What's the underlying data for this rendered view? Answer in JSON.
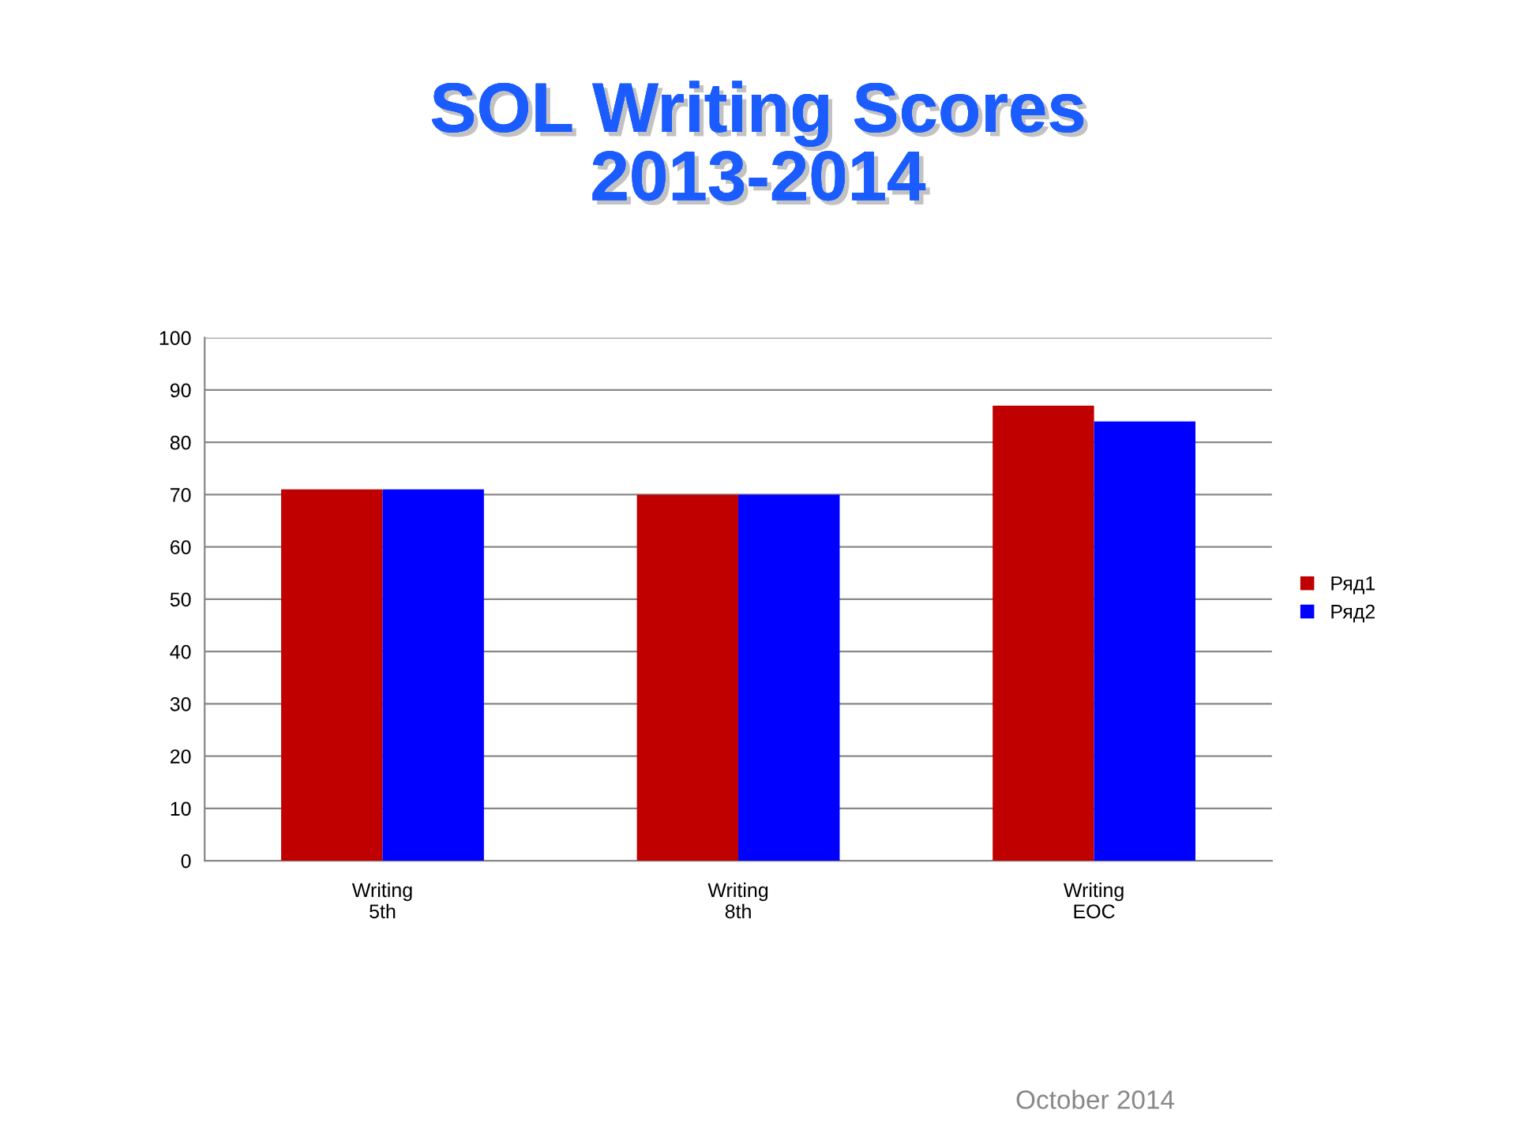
{
  "chart_data": {
    "type": "bar",
    "title": "SOL Writing Scores\n2013-2014",
    "categories": [
      "Writing\n5th",
      "Writing\n8th",
      "Writing\nEOC"
    ],
    "series": [
      {
        "name": "Ряд1",
        "color": "#c00000",
        "values": [
          71,
          70,
          87
        ]
      },
      {
        "name": "Ряд2",
        "color": "#0000ff",
        "values": [
          71,
          70,
          84
        ]
      }
    ],
    "ylim": [
      0,
      100
    ],
    "yticks": [
      0,
      10,
      20,
      30,
      40,
      50,
      60,
      70,
      80,
      90,
      100
    ],
    "grid": "y",
    "legend": "right",
    "annotations": [
      "October 2014"
    ]
  }
}
